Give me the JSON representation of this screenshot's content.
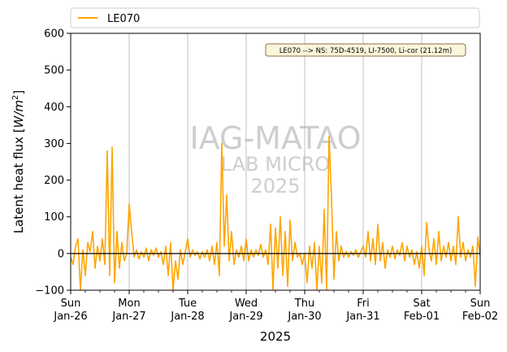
{
  "chart_data": {
    "type": "line",
    "title": "",
    "xlabel": "2025",
    "ylabel": "Latent heat flux [W/m²]",
    "ylabel_parts": {
      "text": "Latent heat flux ",
      "unit_base": "W/m",
      "unit_exp": "2"
    },
    "xlim": [
      "2025-01-26 00:00",
      "2025-02-02 00:00"
    ],
    "ylim": [
      -100,
      600
    ],
    "yticks": [
      -100,
      0,
      100,
      200,
      300,
      400,
      500,
      600
    ],
    "xticks": [
      {
        "day": "Sun",
        "date": "Jan-26"
      },
      {
        "day": "Mon",
        "date": "Jan-27"
      },
      {
        "day": "Tue",
        "date": "Jan-28"
      },
      {
        "day": "Wed",
        "date": "Jan-29"
      },
      {
        "day": "Thu",
        "date": "Jan-30"
      },
      {
        "day": "Fri",
        "date": "Jan-31"
      },
      {
        "day": "Sat",
        "date": "Feb-01"
      },
      {
        "day": "Sun",
        "date": "Feb-02"
      }
    ],
    "grid": "vertical at major day ticks",
    "zero_line": true,
    "legend": {
      "placement": "top, above plot",
      "entries": [
        "LE070"
      ]
    },
    "annotation": "LE070 --> NS: 75D-4519, LI-7500, Li-cor (21.12m)",
    "watermark": [
      "IAG-MATAO",
      "LAB MICRO",
      "2025"
    ],
    "series": [
      {
        "name": "LE070",
        "color": "#FFA500",
        "points": [
          [
            "2025-01-26 00:00",
            -10
          ],
          [
            "2025-01-26 01:00",
            -30
          ],
          [
            "2025-01-26 02:00",
            20
          ],
          [
            "2025-01-26 03:00",
            40
          ],
          [
            "2025-01-26 04:00",
            -100
          ],
          [
            "2025-01-26 05:00",
            10
          ],
          [
            "2025-01-26 06:00",
            -60
          ],
          [
            "2025-01-26 07:00",
            30
          ],
          [
            "2025-01-26 08:00",
            5
          ],
          [
            "2025-01-26 09:00",
            60
          ],
          [
            "2025-01-26 10:00",
            -40
          ],
          [
            "2025-01-26 11:00",
            20
          ],
          [
            "2025-01-26 12:00",
            -20
          ],
          [
            "2025-01-26 13:00",
            40
          ],
          [
            "2025-01-26 14:00",
            -30
          ],
          [
            "2025-01-26 15:00",
            280
          ],
          [
            "2025-01-26 16:00",
            -60
          ],
          [
            "2025-01-26 17:00",
            290
          ],
          [
            "2025-01-26 18:00",
            -80
          ],
          [
            "2025-01-26 19:00",
            60
          ],
          [
            "2025-01-26 20:00",
            -40
          ],
          [
            "2025-01-26 21:00",
            30
          ],
          [
            "2025-01-26 22:00",
            -20
          ],
          [
            "2025-01-26 23:00",
            0
          ],
          [
            "2025-01-27 00:00",
            135
          ],
          [
            "2025-01-27 01:00",
            60
          ],
          [
            "2025-01-27 02:00",
            -10
          ],
          [
            "2025-01-27 03:00",
            10
          ],
          [
            "2025-01-27 04:00",
            -15
          ],
          [
            "2025-01-27 05:00",
            5
          ],
          [
            "2025-01-27 06:00",
            -10
          ],
          [
            "2025-01-27 07:00",
            15
          ],
          [
            "2025-01-27 08:00",
            -20
          ],
          [
            "2025-01-27 09:00",
            10
          ],
          [
            "2025-01-27 10:00",
            -5
          ],
          [
            "2025-01-27 11:00",
            15
          ],
          [
            "2025-01-27 12:00",
            -10
          ],
          [
            "2025-01-27 13:00",
            5
          ],
          [
            "2025-01-27 14:00",
            -30
          ],
          [
            "2025-01-27 15:00",
            20
          ],
          [
            "2025-01-27 16:00",
            -60
          ],
          [
            "2025-01-27 17:00",
            30
          ],
          [
            "2025-01-27 18:00",
            -100
          ],
          [
            "2025-01-27 19:00",
            -20
          ],
          [
            "2025-01-27 20:00",
            -70
          ],
          [
            "2025-01-27 21:00",
            10
          ],
          [
            "2025-01-27 22:00",
            -30
          ],
          [
            "2025-01-27 23:00",
            5
          ],
          [
            "2025-01-28 00:00",
            40
          ],
          [
            "2025-01-28 01:00",
            -10
          ],
          [
            "2025-01-28 02:00",
            10
          ],
          [
            "2025-01-28 03:00",
            -5
          ],
          [
            "2025-01-28 04:00",
            5
          ],
          [
            "2025-01-28 05:00",
            -15
          ],
          [
            "2025-01-28 06:00",
            5
          ],
          [
            "2025-01-28 07:00",
            -10
          ],
          [
            "2025-01-28 08:00",
            10
          ],
          [
            "2025-01-28 09:00",
            -20
          ],
          [
            "2025-01-28 10:00",
            20
          ],
          [
            "2025-01-28 11:00",
            -30
          ],
          [
            "2025-01-28 12:00",
            30
          ],
          [
            "2025-01-28 13:00",
            -60
          ],
          [
            "2025-01-28 14:00",
            300
          ],
          [
            "2025-01-28 15:00",
            20
          ],
          [
            "2025-01-28 16:00",
            160
          ],
          [
            "2025-01-28 17:00",
            -20
          ],
          [
            "2025-01-28 18:00",
            60
          ],
          [
            "2025-01-28 19:00",
            -30
          ],
          [
            "2025-01-28 20:00",
            10
          ],
          [
            "2025-01-28 21:00",
            -10
          ],
          [
            "2025-01-28 22:00",
            20
          ],
          [
            "2025-01-28 23:00",
            -20
          ],
          [
            "2025-01-29 00:00",
            40
          ],
          [
            "2025-01-29 01:00",
            -20
          ],
          [
            "2025-01-29 02:00",
            10
          ],
          [
            "2025-01-29 03:00",
            -10
          ],
          [
            "2025-01-29 04:00",
            10
          ],
          [
            "2025-01-29 05:00",
            -5
          ],
          [
            "2025-01-29 06:00",
            25
          ],
          [
            "2025-01-29 07:00",
            -10
          ],
          [
            "2025-01-29 08:00",
            10
          ],
          [
            "2025-01-29 09:00",
            -30
          ],
          [
            "2025-01-29 10:00",
            80
          ],
          [
            "2025-01-29 11:00",
            -100
          ],
          [
            "2025-01-29 12:00",
            70
          ],
          [
            "2025-01-29 13:00",
            -40
          ],
          [
            "2025-01-29 14:00",
            100
          ],
          [
            "2025-01-29 15:00",
            -60
          ],
          [
            "2025-01-29 16:00",
            60
          ],
          [
            "2025-01-29 17:00",
            -90
          ],
          [
            "2025-01-29 18:00",
            90
          ],
          [
            "2025-01-29 19:00",
            -20
          ],
          [
            "2025-01-29 20:00",
            30
          ],
          [
            "2025-01-29 21:00",
            -10
          ],
          [
            "2025-01-29 22:00",
            0
          ],
          [
            "2025-01-29 23:00",
            -30
          ],
          [
            "2025-01-30 00:00",
            0
          ],
          [
            "2025-01-30 01:00",
            -80
          ],
          [
            "2025-01-30 02:00",
            20
          ],
          [
            "2025-01-30 03:00",
            -40
          ],
          [
            "2025-01-30 04:00",
            30
          ],
          [
            "2025-01-30 05:00",
            -100
          ],
          [
            "2025-01-30 06:00",
            20
          ],
          [
            "2025-01-30 07:00",
            -80
          ],
          [
            "2025-01-30 08:00",
            120
          ],
          [
            "2025-01-30 09:00",
            -100
          ],
          [
            "2025-01-30 10:00",
            320
          ],
          [
            "2025-01-30 11:00",
            150
          ],
          [
            "2025-01-30 12:00",
            -70
          ],
          [
            "2025-01-30 13:00",
            60
          ],
          [
            "2025-01-30 14:00",
            -20
          ],
          [
            "2025-01-30 15:00",
            20
          ],
          [
            "2025-01-30 16:00",
            -10
          ],
          [
            "2025-01-30 17:00",
            5
          ],
          [
            "2025-01-30 18:00",
            -10
          ],
          [
            "2025-01-30 19:00",
            5
          ],
          [
            "2025-01-30 20:00",
            -5
          ],
          [
            "2025-01-30 21:00",
            10
          ],
          [
            "2025-01-30 22:00",
            -10
          ],
          [
            "2025-01-30 23:00",
            5
          ],
          [
            "2025-01-31 00:00",
            20
          ],
          [
            "2025-01-31 01:00",
            -10
          ],
          [
            "2025-01-31 02:00",
            60
          ],
          [
            "2025-01-31 03:00",
            -20
          ],
          [
            "2025-01-31 04:00",
            40
          ],
          [
            "2025-01-31 05:00",
            -30
          ],
          [
            "2025-01-31 06:00",
            80
          ],
          [
            "2025-01-31 07:00",
            -20
          ],
          [
            "2025-01-31 08:00",
            30
          ],
          [
            "2025-01-31 09:00",
            -40
          ],
          [
            "2025-01-31 10:00",
            10
          ],
          [
            "2025-01-31 11:00",
            -10
          ],
          [
            "2025-01-31 12:00",
            20
          ],
          [
            "2025-01-31 13:00",
            -15
          ],
          [
            "2025-01-31 14:00",
            10
          ],
          [
            "2025-01-31 15:00",
            -5
          ],
          [
            "2025-01-31 16:00",
            30
          ],
          [
            "2025-01-31 17:00",
            -20
          ],
          [
            "2025-01-31 18:00",
            20
          ],
          [
            "2025-01-31 19:00",
            -10
          ],
          [
            "2025-01-31 20:00",
            10
          ],
          [
            "2025-01-31 21:00",
            -30
          ],
          [
            "2025-01-31 22:00",
            5
          ],
          [
            "2025-01-31 23:00",
            -40
          ],
          [
            "2025-02-01 00:00",
            20
          ],
          [
            "2025-02-01 01:00",
            -60
          ],
          [
            "2025-02-01 02:00",
            85
          ],
          [
            "2025-02-01 03:00",
            10
          ],
          [
            "2025-02-01 04:00",
            -20
          ],
          [
            "2025-02-01 05:00",
            40
          ],
          [
            "2025-02-01 06:00",
            -30
          ],
          [
            "2025-02-01 07:00",
            60
          ],
          [
            "2025-02-01 08:00",
            -20
          ],
          [
            "2025-02-01 09:00",
            20
          ],
          [
            "2025-02-01 10:00",
            -10
          ],
          [
            "2025-02-01 11:00",
            30
          ],
          [
            "2025-02-01 12:00",
            -20
          ],
          [
            "2025-02-01 13:00",
            20
          ],
          [
            "2025-02-01 14:00",
            -30
          ],
          [
            "2025-02-01 15:00",
            100
          ],
          [
            "2025-02-01 16:00",
            -10
          ],
          [
            "2025-02-01 17:00",
            30
          ],
          [
            "2025-02-01 18:00",
            -20
          ],
          [
            "2025-02-01 19:00",
            10
          ],
          [
            "2025-02-01 20:00",
            -10
          ],
          [
            "2025-02-01 21:00",
            20
          ],
          [
            "2025-02-01 22:00",
            -90
          ],
          [
            "2025-02-01 23:00",
            45
          ],
          [
            "2025-02-02 00:00",
            -10
          ]
        ]
      }
    ]
  }
}
